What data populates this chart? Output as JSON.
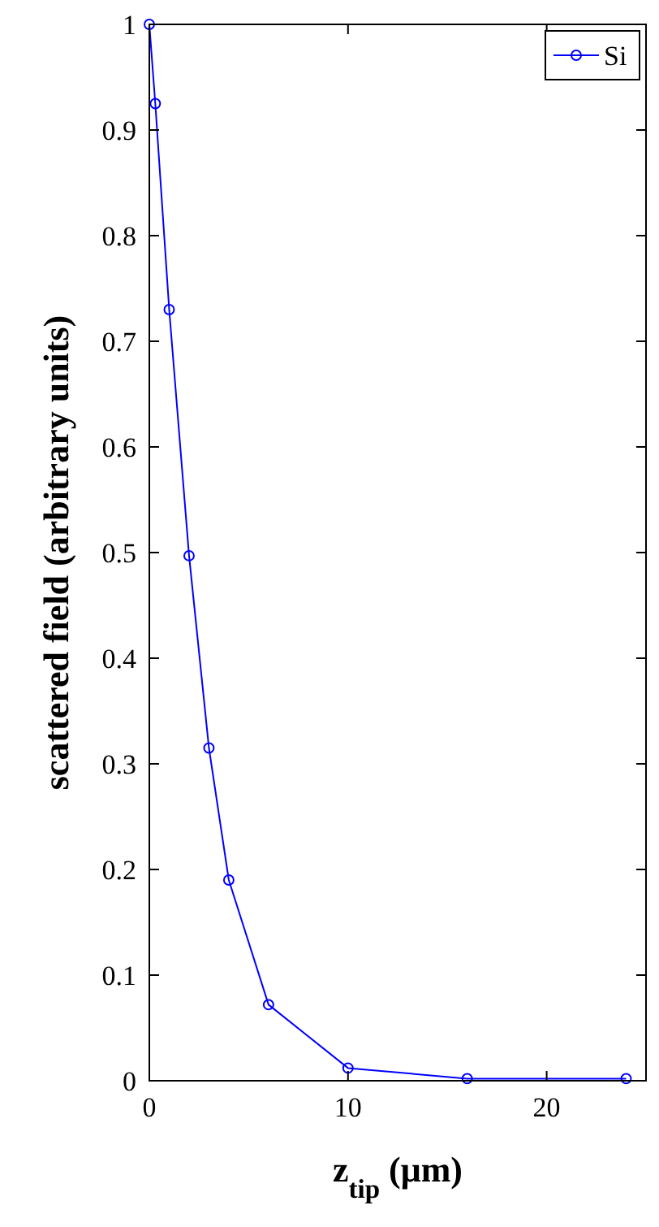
{
  "chart_data": {
    "type": "line",
    "xlabel": "z$_{tip}$ (μm)",
    "ylabel": "scattered field (arbitrary units)",
    "x": [
      0,
      0.3,
      1,
      2,
      3,
      4,
      6,
      10,
      16,
      24
    ],
    "series": [
      {
        "name": "Si",
        "color": "#0000ff",
        "values": [
          1,
          0.925,
          0.73,
          0.497,
          0.315,
          0.19,
          0.072,
          0.012,
          0.002,
          0.002
        ]
      }
    ],
    "xlim": [
      0,
      25
    ],
    "xticks": [
      0,
      10,
      20
    ],
    "ylim": [
      0,
      1
    ],
    "yticks": [
      0,
      0.1,
      0.2,
      0.3,
      0.4,
      0.5,
      0.6,
      0.7,
      0.8,
      0.9,
      1
    ],
    "marker": "circle",
    "line_style": "solid",
    "legend": "top right",
    "grid": false
  }
}
